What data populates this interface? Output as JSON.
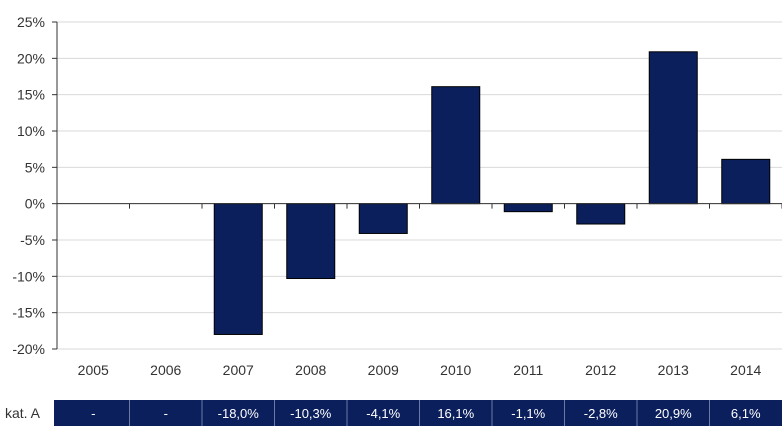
{
  "chart_data": {
    "type": "bar",
    "categories": [
      "2005",
      "2006",
      "2007",
      "2008",
      "2009",
      "2010",
      "2011",
      "2012",
      "2013",
      "2014"
    ],
    "values": [
      null,
      null,
      -18.0,
      -10.3,
      -4.1,
      16.1,
      -1.1,
      -2.8,
      20.9,
      6.1
    ],
    "ylim": [
      -20,
      25
    ],
    "yticks": [
      25,
      20,
      15,
      10,
      5,
      0,
      -5,
      -10,
      -15,
      -20
    ],
    "ytick_labels": [
      "25%",
      "20%",
      "15%",
      "10%",
      "5%",
      "0%",
      "-5%",
      "-10%",
      "-15%",
      "-20%"
    ],
    "grid": true,
    "bar_color": "#0b1f5c",
    "title": "",
    "xlabel": "",
    "ylabel": ""
  },
  "table": {
    "row_label": "kat. A",
    "cells": [
      "-",
      "-",
      "-18,0%",
      "-10,3%",
      "-4,1%",
      "16,1%",
      "-1,1%",
      "-2,8%",
      "20,9%",
      "6,1%"
    ],
    "cell_color": "#0b1f5c",
    "text_color": "#ffffff"
  }
}
